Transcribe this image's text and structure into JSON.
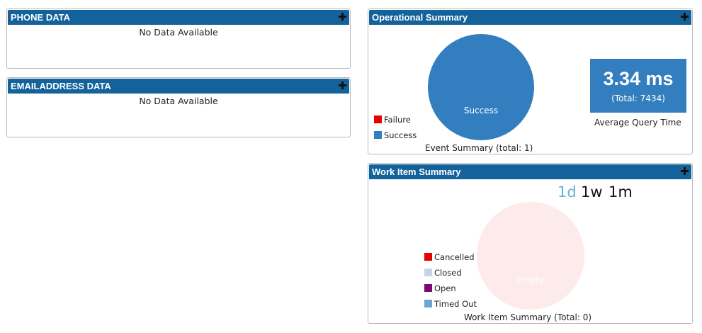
{
  "panels": {
    "phone": {
      "title": "PHONE DATA",
      "empty_text": "No Data Available"
    },
    "email": {
      "title": "EMAILADDRESS DATA",
      "empty_text": "No Data Available"
    },
    "operational": {
      "title": "Operational Summary",
      "pie_label": "Success",
      "legend": [
        {
          "label": "Failure",
          "color": "#e60000"
        },
        {
          "label": "Success",
          "color": "#337ebf"
        }
      ],
      "caption": "Event Summary (total: 1)",
      "metric": {
        "value": "3.34 ms",
        "total": "(Total: 7434)",
        "caption": "Average Query Time",
        "color": "#337ebf"
      }
    },
    "workitem": {
      "title": "Work Item Summary",
      "ranges": [
        {
          "label": "1d",
          "active": true
        },
        {
          "label": "1w",
          "active": false
        },
        {
          "label": "1m",
          "active": false
        }
      ],
      "pie_label": "empty",
      "legend": [
        {
          "label": "Cancelled",
          "color": "#e60000"
        },
        {
          "label": "Closed",
          "color": "#c5d5e8"
        },
        {
          "label": "Open",
          "color": "#7a0a78"
        },
        {
          "label": "Timed Out",
          "color": "#6aa6d2"
        }
      ],
      "caption": "Work Item Summary (Total: 0)"
    }
  },
  "chart_data": [
    {
      "type": "pie",
      "title": "Event Summary (total: 1)",
      "categories": [
        "Failure",
        "Success"
      ],
      "values": [
        0,
        1
      ],
      "colors": [
        "#e60000",
        "#337ebf"
      ]
    },
    {
      "type": "pie",
      "title": "Work Item Summary (Total: 0)",
      "categories": [
        "Cancelled",
        "Closed",
        "Open",
        "Timed Out"
      ],
      "values": [
        0,
        0,
        0,
        0
      ],
      "colors": [
        "#e60000",
        "#c5d5e8",
        "#7a0a78",
        "#6aa6d2"
      ]
    }
  ]
}
